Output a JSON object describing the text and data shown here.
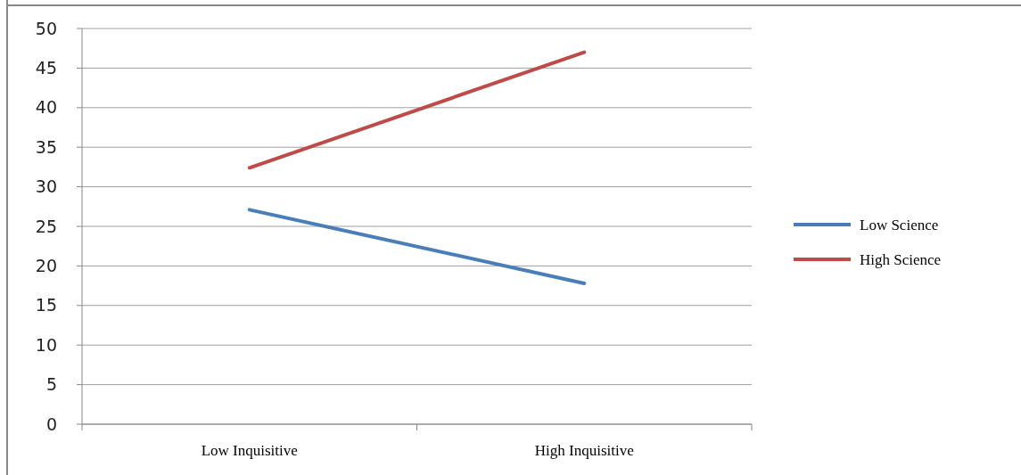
{
  "chart_data": {
    "type": "line",
    "categories": [
      "Low Inquisitive",
      "High Inquisitive"
    ],
    "series": [
      {
        "name": "Low Science",
        "color": "#4a7ebb",
        "values": [
          27.1,
          17.8
        ]
      },
      {
        "name": "High Science",
        "color": "#be4b48",
        "values": [
          32.4,
          47
        ]
      }
    ],
    "ylim": [
      0,
      50
    ],
    "yticks": [
      0,
      5,
      10,
      15,
      20,
      25,
      30,
      35,
      40,
      45,
      50
    ],
    "grid": "y",
    "legend": "right",
    "marker": "none",
    "line_style": "solid"
  }
}
